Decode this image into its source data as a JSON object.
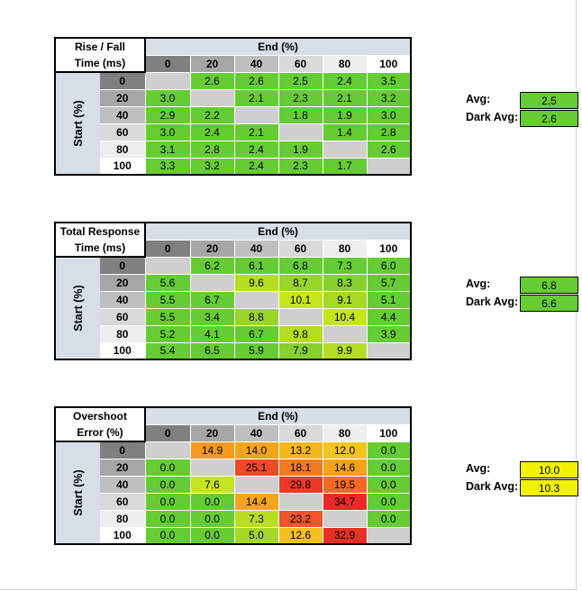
{
  "colors": {
    "header_fill": "#d7dee6",
    "diag_fill": "#d0cece",
    "avg_rt_fill": "#66cc33",
    "avg_os_fill": "#f2f200"
  },
  "tables": [
    {
      "title_line1": "Rise / Fall",
      "title_line2": "Time (ms)",
      "end_label": "End (%)",
      "start_label": "Start (%)",
      "levels": [
        "0",
        "20",
        "40",
        "60",
        "80",
        "100"
      ],
      "level_shades": [
        "#808080",
        "#a6a6a6",
        "#bfbfbf",
        "#d9d9d9",
        "#eeeeee",
        "#ffffff"
      ],
      "rows": [
        [
          null,
          2.6,
          2.6,
          2.5,
          2.4,
          3.5
        ],
        [
          3.0,
          null,
          2.1,
          2.3,
          2.1,
          3.2
        ],
        [
          2.9,
          2.2,
          null,
          1.8,
          1.9,
          3.0
        ],
        [
          3.0,
          2.4,
          2.1,
          null,
          1.4,
          2.8
        ],
        [
          3.1,
          2.8,
          2.4,
          1.9,
          null,
          2.6
        ],
        [
          3.3,
          3.2,
          2.4,
          2.3,
          1.7,
          null
        ]
      ],
      "cell_colors": [
        [
          "#d0cece",
          "#66cc33",
          "#66cc33",
          "#66cc33",
          "#66cc33",
          "#66cc33"
        ],
        [
          "#66cc33",
          "#d0cece",
          "#66cc33",
          "#66cc33",
          "#66cc33",
          "#66cc33"
        ],
        [
          "#66cc33",
          "#66cc33",
          "#d0cece",
          "#66cc33",
          "#66cc33",
          "#66cc33"
        ],
        [
          "#66cc33",
          "#66cc33",
          "#66cc33",
          "#d0cece",
          "#66cc33",
          "#66cc33"
        ],
        [
          "#66cc33",
          "#66cc33",
          "#66cc33",
          "#66cc33",
          "#d0cece",
          "#66cc33"
        ],
        [
          "#66cc33",
          "#66cc33",
          "#66cc33",
          "#66cc33",
          "#66cc33",
          "#d0cece"
        ]
      ],
      "avg_label": "Avg:",
      "avg_value": "2.5",
      "dark_avg_label": "Dark Avg:",
      "dark_avg_value": "2.6",
      "avg_color": "#66cc33"
    },
    {
      "title_line1": "Total Response",
      "title_line2": "Time (ms)",
      "end_label": "End (%)",
      "start_label": "Start (%)",
      "levels": [
        "0",
        "20",
        "40",
        "60",
        "80",
        "100"
      ],
      "level_shades": [
        "#808080",
        "#a6a6a6",
        "#bfbfbf",
        "#d9d9d9",
        "#eeeeee",
        "#ffffff"
      ],
      "rows": [
        [
          null,
          6.2,
          6.1,
          6.8,
          7.3,
          6.0
        ],
        [
          5.6,
          null,
          9.6,
          8.7,
          8.3,
          5.7
        ],
        [
          5.5,
          6.7,
          null,
          10.1,
          9.1,
          5.1
        ],
        [
          5.5,
          3.4,
          8.8,
          null,
          10.4,
          4.4
        ],
        [
          5.2,
          4.1,
          6.7,
          9.8,
          null,
          3.9
        ],
        [
          5.4,
          6.5,
          5.9,
          7.9,
          9.9,
          null
        ]
      ],
      "cell_colors": [
        [
          "#d0cece",
          "#66cc33",
          "#66cc33",
          "#66cc33",
          "#66cc33",
          "#66cc33"
        ],
        [
          "#66cc33",
          "#d0cece",
          "#b5dd22",
          "#99d428",
          "#88d02b",
          "#66cc33"
        ],
        [
          "#66cc33",
          "#66cc33",
          "#d0cece",
          "#c8e41e",
          "#a6d925",
          "#66cc33"
        ],
        [
          "#66cc33",
          "#66cc33",
          "#99d428",
          "#d0cece",
          "#c8e41e",
          "#66cc33"
        ],
        [
          "#66cc33",
          "#66cc33",
          "#66cc33",
          "#b5dd22",
          "#d0cece",
          "#66cc33"
        ],
        [
          "#66cc33",
          "#66cc33",
          "#66cc33",
          "#88d02b",
          "#b5dd22",
          "#d0cece"
        ]
      ],
      "avg_label": "Avg:",
      "avg_value": "6.8",
      "dark_avg_label": "Dark Avg:",
      "dark_avg_value": "6.6",
      "avg_color": "#66cc33"
    },
    {
      "title_line1": "Overshoot",
      "title_line2": "Error (%)",
      "end_label": "End (%)",
      "start_label": "Start (%)",
      "levels": [
        "0",
        "20",
        "40",
        "60",
        "80",
        "100"
      ],
      "level_shades": [
        "#808080",
        "#a6a6a6",
        "#bfbfbf",
        "#d9d9d9",
        "#eeeeee",
        "#ffffff"
      ],
      "rows": [
        [
          null,
          14.9,
          14.0,
          13.2,
          12.0,
          0.0
        ],
        [
          0.0,
          null,
          25.1,
          18.1,
          14.6,
          0.0
        ],
        [
          0.0,
          7.6,
          null,
          29.8,
          19.5,
          0.0
        ],
        [
          0.0,
          0.0,
          14.4,
          null,
          34.7,
          0.0
        ],
        [
          0.0,
          0.0,
          7.3,
          23.2,
          null,
          0.0
        ],
        [
          0.0,
          0.0,
          5.0,
          12.6,
          32.9,
          null
        ]
      ],
      "cell_colors": [
        [
          "#d0cece",
          "#f59a1c",
          "#f5a41c",
          "#f5b71c",
          "#f4c51c",
          "#66cc33"
        ],
        [
          "#66cc33",
          "#d0cece",
          "#ee4a24",
          "#f37a20",
          "#f5a21c",
          "#66cc33"
        ],
        [
          "#66cc33",
          "#c8e41e",
          "#d0cece",
          "#ec3a25",
          "#f56a1f",
          "#66cc33"
        ],
        [
          "#66cc33",
          "#66cc33",
          "#f5a41c",
          "#d0cece",
          "#e82a26",
          "#66cc33"
        ],
        [
          "#66cc33",
          "#66cc33",
          "#b8de22",
          "#f0542a",
          "#d0cece",
          "#66cc33"
        ],
        [
          "#66cc33",
          "#66cc33",
          "#a3d925",
          "#f4c01c",
          "#e93026",
          "#d0cece"
        ]
      ],
      "avg_label": "Avg:",
      "avg_value": "10.0",
      "dark_avg_label": "Dark Avg:",
      "dark_avg_value": "10.3",
      "avg_color": "#f2f200"
    }
  ]
}
